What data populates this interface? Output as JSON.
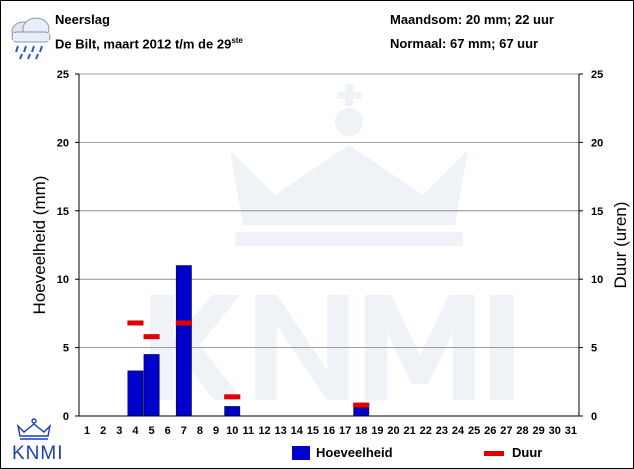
{
  "header": {
    "title": "Neerslag",
    "subtitle_main": "De Bilt, maart 2012 t/m de 29",
    "subtitle_sup": "ste",
    "monthly_total": "Maandsom: 20 mm; 22 uur",
    "normal": "Normaal: 67 mm; 67 uur"
  },
  "logo": {
    "text": "KNMI"
  },
  "colors": {
    "bar": "#0000cc",
    "duur": "#e00000",
    "grid": "#808080"
  },
  "chart_data": {
    "type": "bar",
    "categories": [
      "1",
      "2",
      "3",
      "4",
      "5",
      "6",
      "7",
      "8",
      "9",
      "10",
      "11",
      "12",
      "13",
      "14",
      "15",
      "16",
      "17",
      "18",
      "19",
      "20",
      "21",
      "22",
      "23",
      "24",
      "25",
      "26",
      "27",
      "28",
      "29",
      "30",
      "31"
    ],
    "series": [
      {
        "name": "Hoeveelheid",
        "kind": "bar",
        "values": [
          0,
          0,
          0,
          3.3,
          4.5,
          0,
          11.0,
          0,
          0,
          0.7,
          0,
          0,
          0,
          0,
          0,
          0,
          0,
          0.6,
          0,
          0,
          0,
          0,
          0,
          0,
          0,
          0,
          0,
          0,
          0,
          0,
          0
        ]
      },
      {
        "name": "Duur",
        "kind": "marker",
        "values": [
          null,
          null,
          null,
          6.8,
          5.8,
          null,
          6.8,
          null,
          null,
          1.4,
          null,
          null,
          null,
          null,
          null,
          null,
          null,
          0.8,
          null,
          null,
          null,
          null,
          null,
          null,
          null,
          null,
          null,
          null,
          null,
          null,
          null
        ]
      }
    ],
    "ylabel": "Hoeveelheid (mm)",
    "y2label": "Duur (uren)",
    "ylim": [
      0,
      25
    ],
    "yticks": [
      0,
      5,
      10,
      15,
      20,
      25
    ],
    "grid": true,
    "legend_position": "bottom"
  }
}
